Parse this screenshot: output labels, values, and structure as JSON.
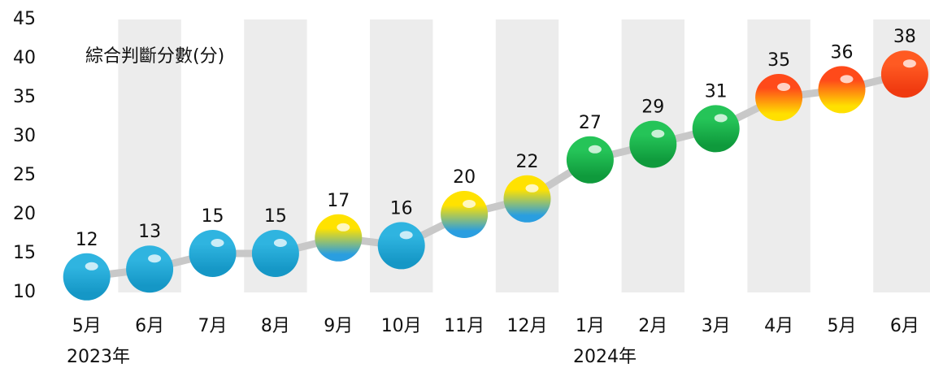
{
  "chart_data": {
    "type": "line",
    "title": "綜合判斷分數(分)",
    "categories": [
      "5月",
      "6月",
      "7月",
      "8月",
      "9月",
      "10月",
      "11月",
      "12月",
      "1月",
      "2月",
      "3月",
      "4月",
      "5月",
      "6月"
    ],
    "year_labels": [
      "2023年",
      "2024年"
    ],
    "values": [
      12,
      13,
      15,
      15,
      17,
      16,
      20,
      22,
      27,
      29,
      31,
      35,
      36,
      38
    ],
    "line_color": "#c8c8c8",
    "band_color": "#ececec",
    "point_colors": [
      [
        "#2fb4e0",
        "#1597c6"
      ],
      [
        "#2fb4e0",
        "#1597c6"
      ],
      [
        "#2fb4e0",
        "#1597c6"
      ],
      [
        "#2fb4e0",
        "#1597c6"
      ],
      [
        "#ffe200",
        "#2a9ee0"
      ],
      [
        "#2fb4e0",
        "#1597c6"
      ],
      [
        "#ffe200",
        "#2a9ee0"
      ],
      [
        "#ffe200",
        "#2a9ee0"
      ],
      [
        "#25c458",
        "#0f9a3c"
      ],
      [
        "#25c458",
        "#0f9a3c"
      ],
      [
        "#25c458",
        "#0f9a3c"
      ],
      [
        "#ff4a1a",
        "#ffe000"
      ],
      [
        "#ff4a1a",
        "#ffe000"
      ],
      [
        "#ff5a22",
        "#f03a10"
      ]
    ],
    "ylim": [
      10,
      45
    ],
    "yticks": [
      10,
      15,
      20,
      25,
      30,
      35,
      40,
      45
    ]
  }
}
